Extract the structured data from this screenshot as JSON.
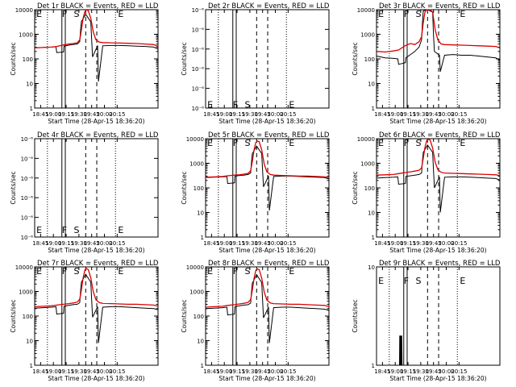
{
  "colors": {
    "events": "#000000",
    "lld": "#dd0000",
    "axis": "#000000"
  },
  "common": {
    "xlabel": "Start Time (28-Apr-15 18:36:20)",
    "ylabel": "Counts/sec",
    "xticks": [
      "18:45",
      "19:00",
      "19:15",
      "19:30",
      "19:45",
      "20:00",
      "20:15"
    ]
  },
  "chart_data": [
    {
      "type": "line",
      "title": "Det 1r BLACK = Events, RED = LLD",
      "scale": "log",
      "ylim": [
        1,
        10000
      ],
      "ytick_labels": [
        "1",
        "10",
        "100",
        "1000",
        "10000"
      ],
      "markers": [
        "E",
        "F",
        "S",
        "E"
      ],
      "marker_y": 10000,
      "series": [
        {
          "name": "Events",
          "x": [
            0,
            10,
            20,
            25,
            26,
            34,
            34.5,
            40,
            45,
            50,
            53,
            54,
            55,
            60,
            66,
            67,
            68,
            74,
            75,
            80,
            90,
            100,
            110,
            120,
            130,
            140,
            145
          ],
          "y": [
            280,
            290,
            300,
            310,
            180,
            190,
            330,
            360,
            380,
            400,
            500,
            1600,
            3300,
            6500,
            3200,
            600,
            120,
            350,
            12,
            340,
            350,
            350,
            340,
            330,
            320,
            300,
            250
          ]
        },
        {
          "name": "LLD",
          "x": [
            0,
            10,
            20,
            26,
            34,
            40,
            45,
            50,
            53,
            55,
            57,
            59,
            61,
            63,
            66,
            69,
            72,
            76,
            80,
            90,
            100,
            110,
            120,
            130,
            140,
            145
          ],
          "y": [
            280,
            290,
            300,
            320,
            370,
            400,
            420,
            450,
            600,
            1500,
            4500,
            8500,
            10000,
            9000,
            4500,
            1200,
            600,
            480,
            460,
            450,
            440,
            430,
            420,
            400,
            380,
            320
          ]
        }
      ]
    },
    {
      "type": "line",
      "title": "Det 2r BLACK = Events, RED = LLD",
      "scale": "log",
      "ylim": [
        1e-06,
        1e-05
      ],
      "ytick_labels": [
        "10⁻⁶",
        "10⁻⁶",
        "10⁻⁶",
        "10⁻⁶",
        "10⁻⁶",
        "10⁻⁶"
      ],
      "markers": [
        "E",
        "F",
        "S",
        "E"
      ],
      "marker_y": 1.2e-06,
      "series": []
    },
    {
      "type": "line",
      "title": "Det 3r BLACK = Events, RED = LLD",
      "scale": "log",
      "ylim": [
        1,
        10000
      ],
      "ytick_labels": [
        "1",
        "10",
        "100",
        "1000",
        "10000"
      ],
      "markers": [
        "E",
        "F",
        "S",
        "E"
      ],
      "marker_y": 10000,
      "series": [
        {
          "name": "Events",
          "x": [
            0,
            10,
            20,
            25,
            26,
            34,
            34.5,
            40,
            45,
            50,
            53,
            54,
            55,
            60,
            66,
            67,
            68,
            74,
            75,
            80,
            90,
            100,
            110,
            120,
            130,
            140,
            145
          ],
          "y": [
            130,
            110,
            105,
            100,
            60,
            70,
            110,
            150,
            200,
            300,
            600,
            3000,
            9000,
            10000,
            8000,
            900,
            200,
            140,
            30,
            140,
            150,
            140,
            140,
            130,
            120,
            110,
            90
          ]
        },
        {
          "name": "LLD",
          "x": [
            0,
            10,
            20,
            26,
            34,
            40,
            45,
            50,
            53,
            55,
            57,
            59,
            61,
            63,
            66,
            69,
            72,
            76,
            80,
            90,
            100,
            110,
            120,
            130,
            140,
            145
          ],
          "y": [
            200,
            190,
            210,
            230,
            350,
            420,
            380,
            500,
            800,
            3000,
            8000,
            10000,
            10000,
            10000,
            8000,
            1500,
            600,
            400,
            380,
            370,
            360,
            350,
            340,
            330,
            320,
            280
          ]
        }
      ]
    },
    {
      "type": "line",
      "title": "Det 4r BLACK = Events, RED = LLD",
      "scale": "log",
      "ylim": [
        1e-06,
        1e-05
      ],
      "ytick_labels": [
        "10⁻⁶",
        "10⁻⁶",
        "10⁻⁶",
        "10⁻⁶",
        "10⁻⁶",
        "10⁻⁶"
      ],
      "markers": [
        "E",
        "F",
        "S",
        "E"
      ],
      "marker_y": 1.3e-06,
      "series": []
    },
    {
      "type": "line",
      "title": "Det 5r BLACK = Events, RED = LLD",
      "scale": "log",
      "ylim": [
        1,
        10000
      ],
      "ytick_labels": [
        "1",
        "10",
        "100",
        "1000",
        "10000"
      ],
      "markers": [
        "E",
        "F",
        "S",
        "E"
      ],
      "marker_y": 10000,
      "series": [
        {
          "name": "Events",
          "x": [
            0,
            10,
            20,
            25,
            26,
            34,
            34.5,
            40,
            45,
            50,
            53,
            54,
            55,
            60,
            66,
            67,
            68,
            74,
            75,
            80,
            90,
            100,
            110,
            120,
            130,
            140,
            145
          ],
          "y": [
            260,
            270,
            280,
            290,
            150,
            160,
            300,
            320,
            330,
            350,
            400,
            1200,
            2500,
            5000,
            2500,
            500,
            110,
            300,
            12,
            290,
            300,
            300,
            290,
            280,
            270,
            260,
            230
          ]
        },
        {
          "name": "LLD",
          "x": [
            0,
            10,
            20,
            26,
            34,
            40,
            45,
            50,
            53,
            55,
            57,
            59,
            61,
            63,
            66,
            69,
            72,
            76,
            80,
            90,
            100,
            110,
            120,
            130,
            140,
            145
          ],
          "y": [
            270,
            280,
            290,
            310,
            330,
            340,
            360,
            390,
            500,
            1200,
            3500,
            7000,
            8000,
            7500,
            3500,
            900,
            450,
            350,
            330,
            320,
            310,
            300,
            300,
            290,
            280,
            260
          ]
        }
      ]
    },
    {
      "type": "line",
      "title": "Det 6r BLACK = Events, RED = LLD",
      "scale": "log",
      "ylim": [
        1,
        10000
      ],
      "ytick_labels": [
        "1",
        "10",
        "100",
        "1000",
        "10000"
      ],
      "markers": [
        "E",
        "F",
        "S",
        "E"
      ],
      "marker_y": 10000,
      "series": [
        {
          "name": "Events",
          "x": [
            0,
            10,
            20,
            25,
            26,
            34,
            34.5,
            40,
            45,
            50,
            53,
            54,
            55,
            60,
            66,
            67,
            68,
            74,
            75,
            80,
            90,
            100,
            110,
            120,
            130,
            140,
            145
          ],
          "y": [
            250,
            260,
            270,
            280,
            140,
            150,
            290,
            310,
            330,
            350,
            400,
            1300,
            2800,
            5500,
            2800,
            500,
            100,
            280,
            10,
            270,
            280,
            280,
            270,
            260,
            250,
            240,
            210
          ]
        },
        {
          "name": "LLD",
          "x": [
            0,
            10,
            20,
            26,
            34,
            40,
            45,
            50,
            53,
            55,
            57,
            59,
            61,
            63,
            66,
            69,
            72,
            76,
            80,
            90,
            100,
            110,
            120,
            130,
            140,
            145
          ],
          "y": [
            330,
            340,
            350,
            380,
            420,
            450,
            480,
            520,
            650,
            1600,
            4500,
            8500,
            9500,
            8800,
            4200,
            1100,
            550,
            430,
            400,
            390,
            380,
            370,
            360,
            350,
            340,
            320
          ]
        }
      ]
    },
    {
      "type": "line",
      "title": "Det 7r BLACK = Events, RED = LLD",
      "scale": "log",
      "ylim": [
        1,
        10000
      ],
      "ytick_labels": [
        "1",
        "10",
        "100",
        "1000",
        "10000"
      ],
      "markers": [
        "E",
        "F",
        "S",
        "E"
      ],
      "marker_y": 10000,
      "series": [
        {
          "name": "Events",
          "x": [
            0,
            10,
            20,
            25,
            26,
            34,
            34.5,
            40,
            45,
            50,
            53,
            54,
            55,
            60,
            66,
            67,
            68,
            74,
            75,
            80,
            90,
            100,
            110,
            120,
            130,
            140,
            145
          ],
          "y": [
            210,
            220,
            230,
            240,
            120,
            130,
            250,
            270,
            290,
            300,
            350,
            1100,
            2400,
            5000,
            2400,
            450,
            90,
            240,
            8,
            230,
            240,
            240,
            230,
            220,
            210,
            200,
            180
          ]
        },
        {
          "name": "LLD",
          "x": [
            0,
            10,
            20,
            26,
            34,
            40,
            45,
            50,
            53,
            55,
            57,
            59,
            61,
            63,
            66,
            69,
            72,
            76,
            80,
            90,
            100,
            110,
            120,
            130,
            140,
            145
          ],
          "y": [
            240,
            250,
            260,
            280,
            300,
            320,
            340,
            370,
            480,
            1200,
            3500,
            7500,
            8500,
            7800,
            3600,
            950,
            460,
            350,
            330,
            320,
            310,
            300,
            300,
            290,
            280,
            250
          ]
        }
      ]
    },
    {
      "type": "line",
      "title": "Det 8r BLACK = Events, RED = LLD",
      "scale": "log",
      "ylim": [
        1,
        10000
      ],
      "ytick_labels": [
        "1",
        "10",
        "100",
        "1000",
        "10000"
      ],
      "markers": [
        "E",
        "F",
        "S",
        "E"
      ],
      "marker_y": 10000,
      "series": [
        {
          "name": "Events",
          "x": [
            0,
            10,
            20,
            25,
            26,
            34,
            34.5,
            40,
            45,
            50,
            53,
            54,
            55,
            60,
            66,
            67,
            68,
            74,
            75,
            80,
            90,
            100,
            110,
            120,
            130,
            140,
            145
          ],
          "y": [
            200,
            210,
            220,
            230,
            110,
            120,
            240,
            260,
            280,
            290,
            340,
            1000,
            2200,
            4800,
            2300,
            430,
            85,
            230,
            8,
            220,
            230,
            230,
            220,
            210,
            200,
            190,
            170
          ]
        },
        {
          "name": "LLD",
          "x": [
            0,
            10,
            20,
            26,
            34,
            40,
            45,
            50,
            53,
            55,
            57,
            59,
            61,
            63,
            66,
            69,
            72,
            76,
            80,
            90,
            100,
            110,
            120,
            130,
            140,
            145
          ],
          "y": [
            230,
            240,
            250,
            270,
            290,
            310,
            330,
            360,
            470,
            1150,
            3400,
            7200,
            8200,
            7600,
            3500,
            920,
            450,
            340,
            320,
            310,
            300,
            300,
            290,
            280,
            270,
            240
          ]
        }
      ]
    },
    {
      "type": "line",
      "title": "Det 9r BLACK = Events, RED = LLD",
      "scale": "log",
      "ylim": [
        1,
        10
      ],
      "ytick_labels": [
        "1",
        "10"
      ],
      "markers": [
        "E",
        "F",
        "S",
        "E"
      ],
      "marker_y": 8,
      "series": [
        {
          "name": "Events",
          "x": [
            0,
            27,
            27.3,
            27.6,
            27.9,
            28.2,
            28.5,
            28.8,
            29.1,
            29.4,
            29.7,
            30,
            145
          ],
          "y": [
            1,
            1,
            2,
            1,
            2,
            1,
            2,
            1,
            2,
            1,
            2,
            1,
            1
          ]
        }
      ]
    }
  ]
}
